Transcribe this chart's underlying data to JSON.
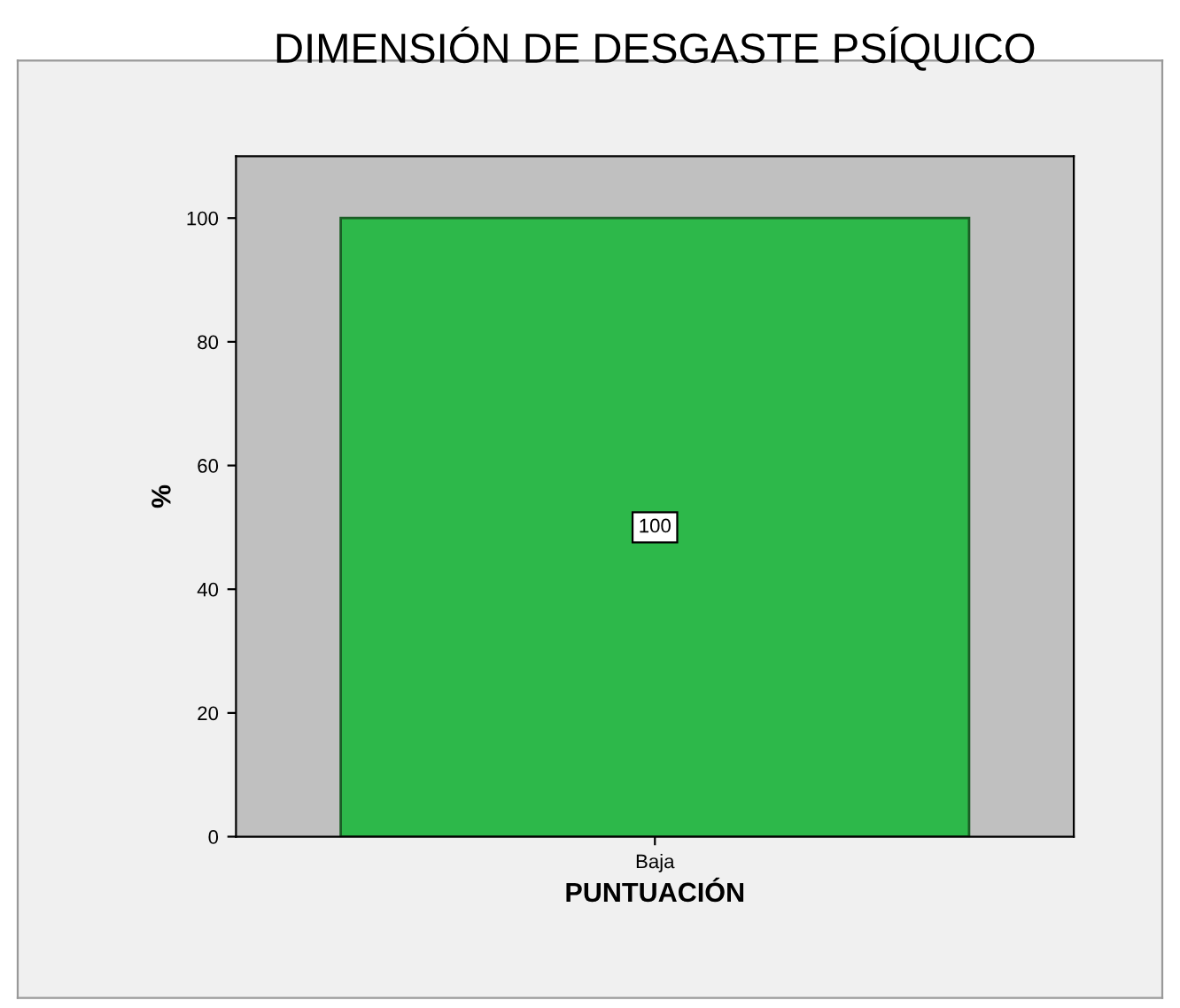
{
  "chart_data": {
    "type": "bar",
    "title": "DIMENSIÓN DE DESGASTE PSÍQUICO",
    "xlabel": "PUNTUACIÓN",
    "ylabel": "%",
    "categories": [
      "Baja"
    ],
    "values": [
      100
    ],
    "color": "#2db84a",
    "ylim": [
      0,
      110
    ],
    "yticks": [
      0,
      20,
      40,
      60,
      80,
      100
    ],
    "data_labels": true,
    "grid": false
  }
}
